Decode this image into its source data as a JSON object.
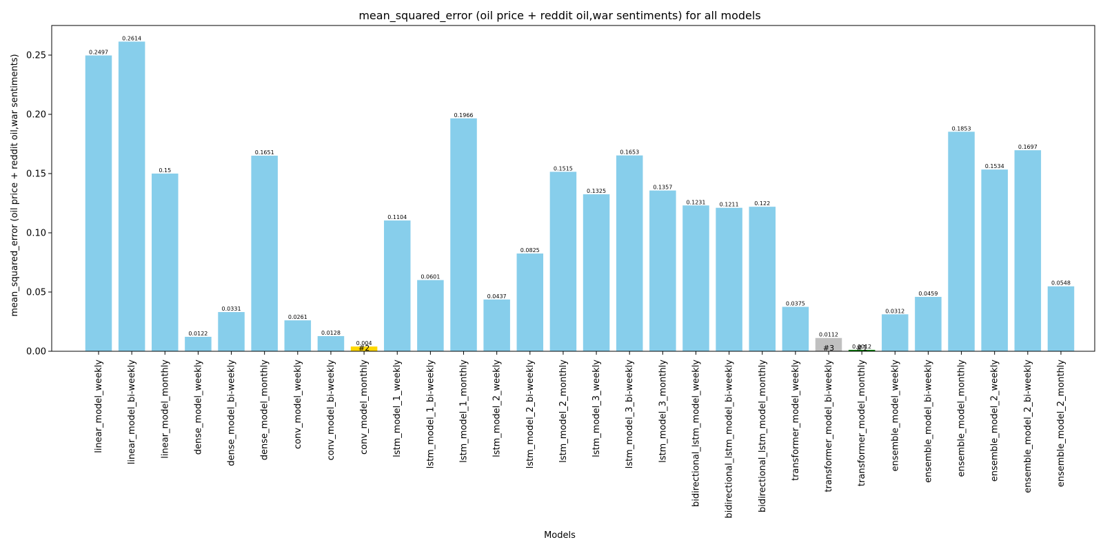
{
  "chart_data": {
    "type": "bar",
    "title": "mean_squared_error (oil price + reddit oil,war sentiments) for all models",
    "xlabel": "Models",
    "ylabel": "mean_squared_error (oil price + reddit oil,war sentiments)",
    "ylim": [
      0,
      0.275
    ],
    "yticks": [
      "0.00",
      "0.05",
      "0.10",
      "0.15",
      "0.20",
      "0.25"
    ],
    "grid": false,
    "categories": [
      "linear_model_weekly",
      "linear_model_bi-weekly",
      "linear_model_monthly",
      "dense_model_weekly",
      "dense_model_bi-weekly",
      "dense_model_monthly",
      "conv_model_weekly",
      "conv_model_bi-weekly",
      "conv_model_monthly",
      "lstm_model_1_weekly",
      "lstm_model_1_bi-weekly",
      "lstm_model_1_monthly",
      "lstm_model_2_weekly",
      "lstm_model_2_bi-weekly",
      "lstm_model_2_monthly",
      "lstm_model_3_weekly",
      "lstm_model_3_bi-weekly",
      "lstm_model_3_monthly",
      "bidirectional_lstm_model_weekly",
      "bidirectional_lstm_model_bi-weekly",
      "bidirectional_lstm_model_monthly",
      "transformer_model_weekly",
      "transformer_model_bi-weekly",
      "transformer_model_monthly",
      "ensemble_model_weekly",
      "ensemble_model_bi-weekly",
      "ensemble_model_monthly",
      "ensemble_model_2_weekly",
      "ensemble_model_2_bi-weekly",
      "ensemble_model_2_monthly"
    ],
    "values": [
      0.2497,
      0.2614,
      0.15,
      0.0122,
      0.0331,
      0.1651,
      0.0261,
      0.0128,
      0.004,
      0.1104,
      0.0601,
      0.1966,
      0.0437,
      0.0825,
      0.1515,
      0.1325,
      0.1653,
      0.1357,
      0.1231,
      0.1211,
      0.122,
      0.0375,
      0.0112,
      0.0012,
      0.0312,
      0.0459,
      0.1853,
      0.1534,
      0.1697,
      0.0548
    ],
    "data_labels": [
      "0.2497",
      "0.2614",
      "0.15",
      "0.0122",
      "0.0331",
      "0.1651",
      "0.0261",
      "0.0128",
      "0.004",
      "0.1104",
      "0.0601",
      "0.1966",
      "0.0437",
      "0.0825",
      "0.1515",
      "0.1325",
      "0.1653",
      "0.1357",
      "0.1231",
      "0.1211",
      "0.122",
      "0.0375",
      "0.0112",
      "0.0012",
      "0.0312",
      "0.0459",
      "0.1853",
      "0.1534",
      "0.1697",
      "0.0548"
    ],
    "default_color": "#87ceeb",
    "highlights": [
      {
        "index": 8,
        "rank": "#2",
        "color": "#ffd700"
      },
      {
        "index": 22,
        "rank": "#3",
        "color": "#c0c0c0"
      },
      {
        "index": 23,
        "rank": "#1",
        "color": "#008000"
      }
    ]
  }
}
